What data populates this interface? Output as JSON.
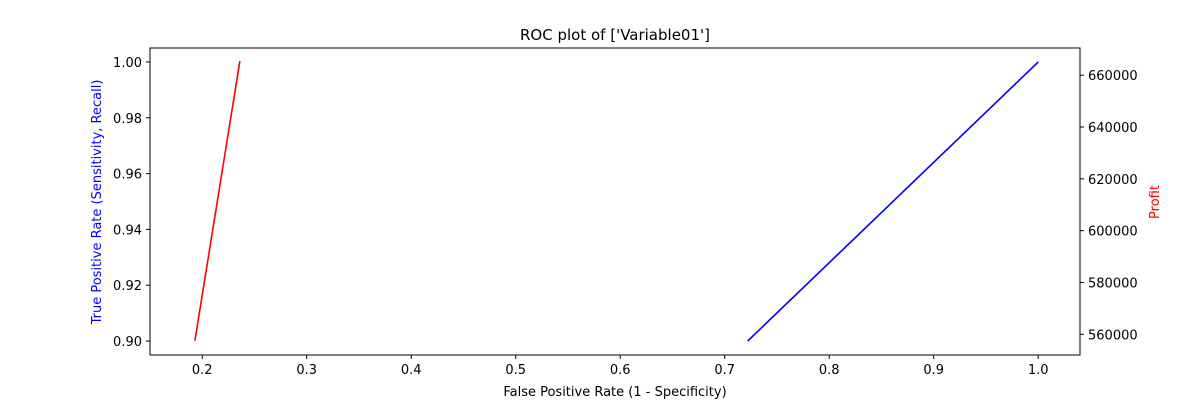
{
  "chart_data": {
    "type": "line",
    "title": "ROC plot of ['Variable01']",
    "xlabel": "False Positive Rate (1 - Specificity)",
    "ylabel": "True Positive Rate (Sensitivity, Recall)",
    "y2label": "Profit",
    "xlim": [
      0.15,
      1.04
    ],
    "ylim": [
      0.895,
      1.005
    ],
    "y2lim": [
      552000,
      670500
    ],
    "grid": false,
    "x_ticks": [
      "0.2",
      "0.3",
      "0.4",
      "0.5",
      "0.6",
      "0.7",
      "0.8",
      "0.9",
      "1.0"
    ],
    "y_ticks": [
      "0.90",
      "0.92",
      "0.94",
      "0.96",
      "0.98",
      "1.00"
    ],
    "y2_ticks": [
      "560000",
      "580000",
      "600000",
      "620000",
      "640000",
      "660000"
    ],
    "series": [
      {
        "axis": "left",
        "color": "#0000ff",
        "x": [
          0.722,
          1.0
        ],
        "y": [
          0.9,
          1.0
        ]
      },
      {
        "axis": "right",
        "color": "#ff0000",
        "x": [
          0.193,
          0.236
        ],
        "y": [
          557500,
          665500
        ]
      }
    ],
    "colors": {
      "ylabel": "#0000ff",
      "y2label": "#ff0000"
    }
  }
}
